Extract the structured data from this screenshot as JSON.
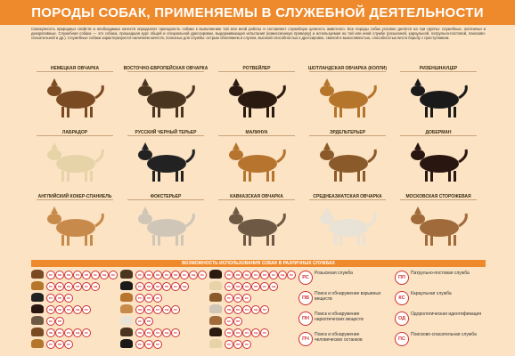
{
  "title": "ПОРОДЫ СОБАК, ПРИМЕНЯЕМЫ В СЛУЖЕБНОЙ ДЕЯТЕЛЬНОСТИ",
  "intro": "Совокупность природных свойств и необходимых качеств определяет пригодность собаки к выполнению той или иной работы и составляет служебную ценность животного. Все породы собак условно делятся на три группы: служебные, охотничьи и декоративные. Служебная собака — это собака, прошедшая курс общей и специальной дрессировки, выдерживающая испытания (комиссионную проверку) и используемая на той или иной службе (розыскной, караульной, патрульно-постовой, поисково-спасательной и др.). Служебные собаки характеризуются наличием качеств, полезных для службы: острым обонянием и слухом, высокой способностью к дрессировке, смелой и выносливостью, способностью вести борьбу с преступником.",
  "breeds": [
    {
      "name": "НЕМЕЦКАЯ ОВЧАРКА",
      "color": "#7a4a22"
    },
    {
      "name": "ВОСТОЧНО-ЕВРОПЕЙСКАЯ ОВЧАРКА",
      "color": "#4a3520"
    },
    {
      "name": "РОТВЕЙЛЕР",
      "color": "#2a1a10"
    },
    {
      "name": "ШОТЛАНДСКАЯ ОВЧАРКА (КОЛЛИ)",
      "color": "#b5752b"
    },
    {
      "name": "РИЗЕНШНАУЦЕР",
      "color": "#1a1a1a"
    },
    {
      "name": "ЛАБРАДОР",
      "color": "#e6d3a8"
    },
    {
      "name": "РУССКИЙ ЧЕРНЫЙ ТЕРЬЕР",
      "color": "#222222"
    },
    {
      "name": "МАЛИНУА",
      "color": "#b7742f"
    },
    {
      "name": "ЭРДЕЛЬТЕРЬЕР",
      "color": "#8b5a2b"
    },
    {
      "name": "ДОБЕРМАН",
      "color": "#2a1610"
    },
    {
      "name": "АНГЛИЙСКИЙ КОКЕР-СПАНИЕЛЬ",
      "color": "#c88a4a"
    },
    {
      "name": "ФОКСТЕРЬЕР",
      "color": "#cfc6b8"
    },
    {
      "name": "КАВКАЗСКАЯ ОВЧАРКА",
      "color": "#6e5a44"
    },
    {
      "name": "СРЕДНЕАЗИАТСКАЯ ОВЧАРКА",
      "color": "#e9e2d6"
    },
    {
      "name": "МОСКОВСКАЯ СТОРОЖЕВАЯ",
      "color": "#a06a3a"
    }
  ],
  "services_heading": "ВОЗМОЖНОСТЬ ИСПОЛЬЗОВАНИЯ СОБАК В РАЗЛИЧНЫХ СЛУЖБАХ",
  "legend": [
    {
      "code": "РС",
      "label": "Розыскная служба"
    },
    {
      "code": "ПП",
      "label": "Патрульно-постовая служба"
    },
    {
      "code": "ПВ",
      "label": "Поиск и обнаружение взрывных веществ"
    },
    {
      "code": "КС",
      "label": "Караульная служба"
    },
    {
      "code": "ПН",
      "label": "Поиск и обнаружение наркотических веществ"
    },
    {
      "code": "ОД",
      "label": "Одорологическая идентификация"
    },
    {
      "code": "ПЧ",
      "label": "Поиск и обнаружение человеческих останков"
    },
    {
      "code": "ПС",
      "label": "Поисково-спасательная служба"
    }
  ],
  "grid_rows": [
    [
      "РС",
      "ПВ",
      "ПН",
      "ПЧ",
      "ПП",
      "КС",
      "ОД",
      "ПС"
    ],
    [
      "РС",
      "ПВ",
      "ПН",
      "ПП",
      "КС",
      "ОД"
    ],
    [
      "РС",
      "ПП",
      "КС"
    ],
    [
      "ПВ",
      "ПН",
      "ПЧ",
      "ОД",
      "ПС"
    ],
    [
      "КС",
      "ПП"
    ],
    [
      "ПВ",
      "ПН",
      "ПЧ",
      "ОД",
      "ПС"
    ],
    [
      "РС",
      "ПП",
      "КС"
    ]
  ],
  "colors": {
    "accent": "#ef8a2c",
    "badge": "#d0302e",
    "background": "#fbe3c4"
  }
}
